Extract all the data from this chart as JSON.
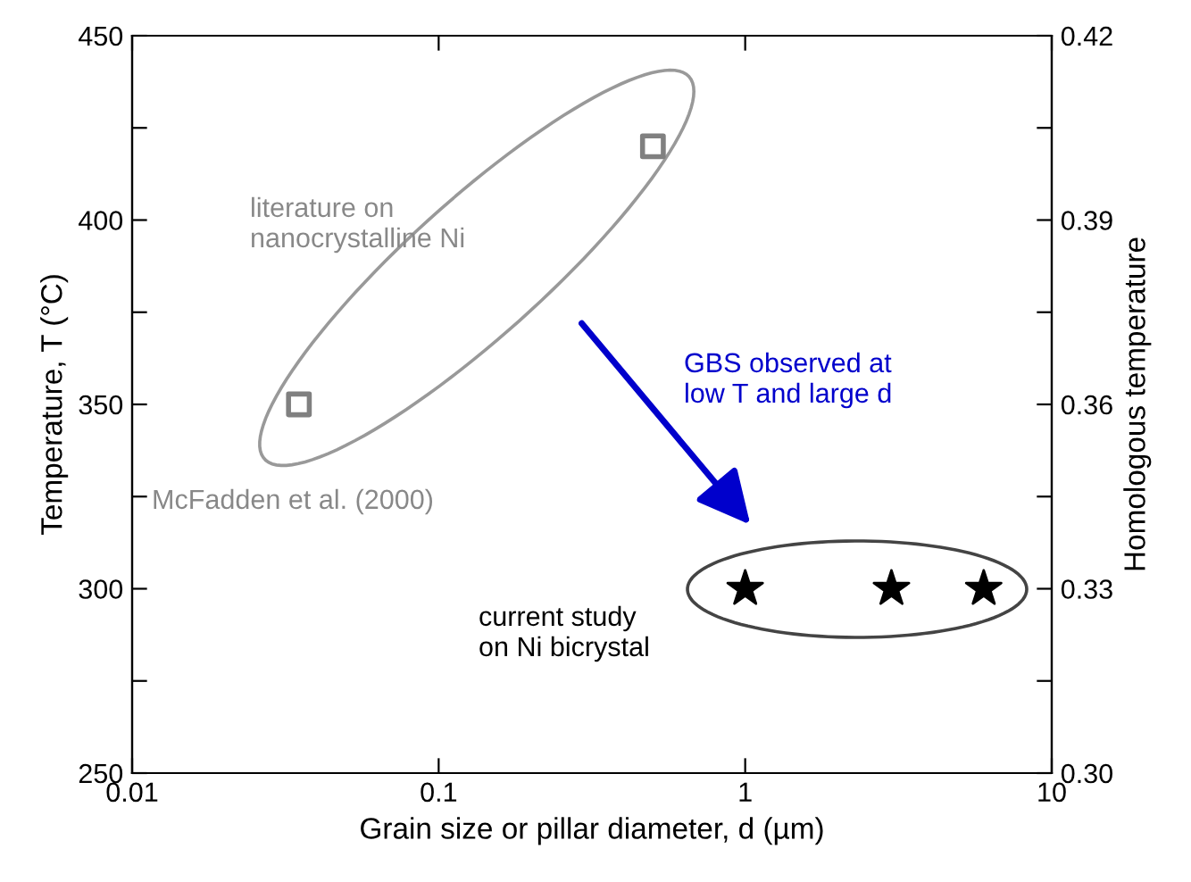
{
  "chart_data": {
    "type": "scatter",
    "xlabel": "Grain size or pillar diameter, d (µm)",
    "ylabel": "Temperature, T (°C)",
    "y2label": "Homologous temperature",
    "log": "x",
    "grid": false,
    "xlim": [
      0.01,
      10
    ],
    "xticks": [
      0.01,
      0.1,
      1,
      10
    ],
    "ylim": [
      250,
      450
    ],
    "yticks": [
      250,
      {
        "value": 275,
        "label": null
      },
      300,
      {
        "value": 325,
        "label": null
      },
      350,
      {
        "value": 375,
        "label": null
      },
      400,
      {
        "value": 425,
        "label": null
      },
      450
    ],
    "y2lim": [
      0.3,
      0.42
    ],
    "y2ticks": [
      {
        "value": 0.3,
        "label": "0.30"
      },
      {
        "value": 0.315,
        "label": null
      },
      0.33,
      {
        "value": 0.345,
        "label": null
      },
      0.36,
      {
        "value": 0.375,
        "label": null
      },
      0.39,
      {
        "value": 0.405,
        "label": null
      },
      0.42
    ],
    "series": [
      {
        "color": "#808080",
        "marker": "square",
        "x": [
          0.035,
          0.5
        ],
        "values": [
          350,
          420
        ]
      },
      {
        "color": "#000000",
        "marker": "star",
        "x": [
          1,
          3,
          6
        ],
        "values": [
          300,
          300,
          300
        ]
      }
    ],
    "annotations": [
      "literature on\nnanocrystalline Ni",
      "McFadden et al. (2000)",
      "GBS observed at\nlow T and large d",
      "current study\non Ni bicrystal"
    ]
  }
}
